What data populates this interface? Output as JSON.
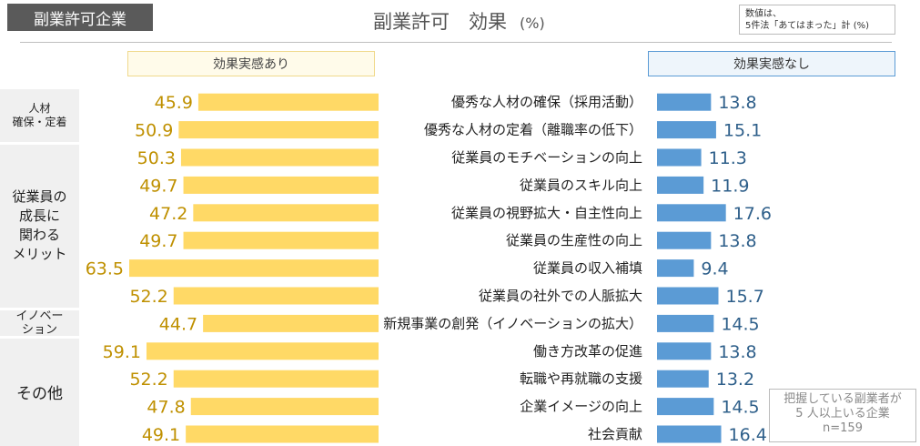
{
  "tag": "副業許可企業",
  "title": "副業許可　効果",
  "unit": "(%)",
  "note": [
    "数値は、",
    "5件法「あてはまった」計 (%)"
  ],
  "legend_left": "効果実感あり",
  "legend_right": "効果実感なし",
  "groups": [
    {
      "label": "人材\n確保・定着",
      "rows": [
        0,
        1
      ]
    },
    {
      "label": "従業員の\n成長に\n関わる\nメリット",
      "rows": [
        2,
        3,
        4,
        5,
        6,
        7
      ]
    },
    {
      "label": "イノベー\nション",
      "rows": [
        8
      ]
    },
    {
      "label": "その他",
      "rows": [
        9,
        10,
        11,
        12
      ]
    }
  ],
  "source": [
    "把握している副業者が",
    "5 人以上いる企業",
    "n=159"
  ],
  "colors": {
    "left_bar": "#ffd966",
    "right_bar": "#5b9bd5",
    "left_value": "#bf9000",
    "right_value": "#2e5f8a"
  },
  "chart_data": {
    "type": "bar",
    "orientation": "horizontal-butterfly",
    "categories": [
      "優秀な人材の確保（採用活動）",
      "優秀な人材の定着（離職率の低下）",
      "従業員のモチベーションの向上",
      "従業員のスキル向上",
      "従業員の視野拡大・自主性向上",
      "従業員の生産性の向上",
      "従業員の収入補填",
      "従業員の社外での人脈拡大",
      "新規事業の創発（イノベーションの拡大）",
      "働き方改革の促進",
      "転職や再就職の支援",
      "企業イメージの向上",
      "社会貢献"
    ],
    "series": [
      {
        "name": "効果実感あり",
        "values": [
          45.9,
          50.9,
          50.3,
          49.7,
          47.2,
          49.7,
          63.5,
          52.2,
          44.7,
          59.1,
          52.2,
          47.8,
          49.1
        ]
      },
      {
        "name": "効果実感なし",
        "values": [
          13.8,
          15.1,
          11.3,
          11.9,
          17.6,
          13.8,
          9.4,
          15.7,
          14.5,
          13.8,
          13.2,
          14.5,
          16.4
        ]
      }
    ],
    "title": "副業許可　効果",
    "xlabel": "",
    "ylabel": "",
    "xlim": [
      0,
      63.5
    ],
    "grid": false,
    "legend": "top"
  }
}
